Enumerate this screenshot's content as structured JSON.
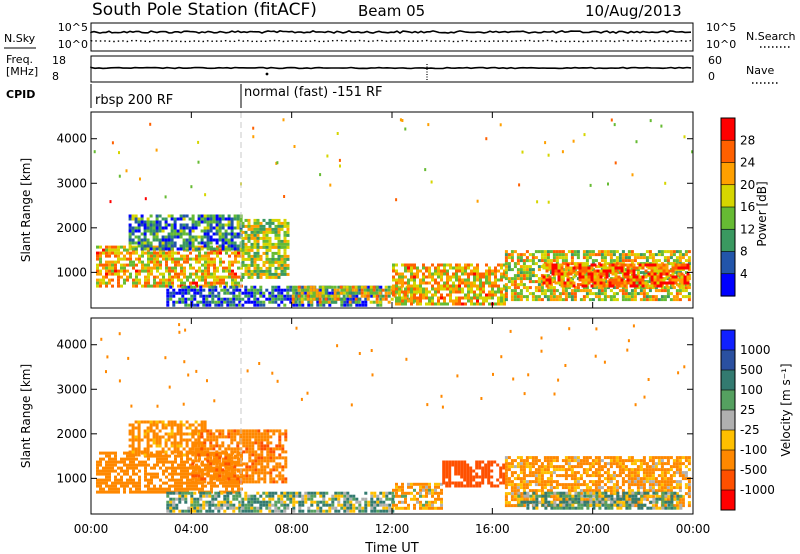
{
  "header": {
    "station": "South Pole Station (fitACF)",
    "beam": "Beam 05",
    "date": "10/Aug/2013"
  },
  "panels": {
    "nsky": {
      "left_label": "N.Sky",
      "right_label": "N.Search",
      "left_ticks": [
        "10^5",
        "10^0"
      ],
      "right_ticks": [
        "10^5",
        "10^0"
      ]
    },
    "freq": {
      "left_label_line1": "Freq.",
      "left_label_line2": "[MHz]",
      "right_label": "Nave",
      "left_ticks": [
        "18",
        "8"
      ],
      "right_ticks": [
        "60",
        "0"
      ]
    },
    "cpid": {
      "label": "CPID",
      "modes": [
        {
          "text": "rbsp 200 RF",
          "start_hour": 0
        },
        {
          "text": "normal (fast) -151 RF",
          "start_hour": 6
        }
      ]
    }
  },
  "colorbars": {
    "power": {
      "label": "Power [dB]",
      "ticks": [
        "28",
        "24",
        "20",
        "16",
        "12",
        "8",
        "4"
      ],
      "colors": [
        "#ff0000",
        "#ff6000",
        "#ffa000",
        "#d6d600",
        "#66bb33",
        "#3a9960",
        "#2255aa",
        "#0000ff"
      ]
    },
    "velocity": {
      "label": "Velocity [m s⁻¹]",
      "ticks": [
        "1000",
        "500",
        "100",
        "25",
        "-25",
        "-100",
        "-500",
        "-1000"
      ],
      "colors": [
        "#1020ff",
        "#2a50a0",
        "#337a70",
        "#55a060",
        "#b0b0b0",
        "#ffc000",
        "#ff8800",
        "#ff5000",
        "#ff0000"
      ]
    }
  },
  "chart_data": [
    {
      "type": "heatmap",
      "title": "",
      "xlabel": "",
      "ylabel": "Slant Range [km]",
      "variable": "Power [dB]",
      "xlim": [
        0,
        24
      ],
      "ylim": [
        200,
        4600
      ],
      "xticks": [
        0,
        4,
        8,
        12,
        16,
        20,
        24
      ],
      "yticks": [
        1000,
        2000,
        3000,
        4000
      ],
      "ytick_labels": [
        "1000",
        "2000",
        "3000",
        "4000"
      ],
      "regions": [
        {
          "t0": 0.2,
          "t1": 6.0,
          "r0": 700,
          "r1": 1600,
          "value": 22
        },
        {
          "t0": 1.5,
          "t1": 6.0,
          "r0": 1500,
          "r1": 2300,
          "value": 12
        },
        {
          "t0": 6.0,
          "t1": 7.8,
          "r0": 900,
          "r1": 2200,
          "value": 18
        },
        {
          "t0": 3.0,
          "t1": 11.5,
          "r0": 250,
          "r1": 700,
          "value": 10
        },
        {
          "t0": 8.0,
          "t1": 13.0,
          "r0": 300,
          "r1": 700,
          "value": 20
        },
        {
          "t0": 12.0,
          "t1": 16.5,
          "r0": 300,
          "r1": 1200,
          "value": 22
        },
        {
          "t0": 16.5,
          "t1": 23.8,
          "r0": 400,
          "r1": 1500,
          "value": 20
        },
        {
          "t0": 18.0,
          "t1": 23.8,
          "r0": 700,
          "r1": 1200,
          "value": 26
        }
      ]
    },
    {
      "type": "heatmap",
      "title": "",
      "xlabel": "Time UT",
      "ylabel": "Slant Range [km]",
      "variable": "Velocity [m s⁻¹]",
      "xlim": [
        0,
        24
      ],
      "ylim": [
        200,
        4600
      ],
      "xticks": [
        0,
        4,
        8,
        12,
        16,
        20,
        24
      ],
      "xtick_labels": [
        "00:00",
        "04:00",
        "08:00",
        "12:00",
        "16:00",
        "20:00",
        "00:00"
      ],
      "yticks": [
        1000,
        2000,
        3000,
        4000
      ],
      "ytick_labels": [
        "1000",
        "2000",
        "3000",
        "4000"
      ],
      "regions": [
        {
          "t0": 0.2,
          "t1": 6.0,
          "r0": 700,
          "r1": 1600,
          "value": -300
        },
        {
          "t0": 1.5,
          "t1": 4.5,
          "r0": 1500,
          "r1": 2300,
          "value": -200
        },
        {
          "t0": 4.0,
          "t1": 7.8,
          "r0": 900,
          "r1": 2100,
          "value": -400
        },
        {
          "t0": 3.0,
          "t1": 12.0,
          "r0": 250,
          "r1": 700,
          "value": 60
        },
        {
          "t0": 12.0,
          "t1": 14.0,
          "r0": 300,
          "r1": 900,
          "value": -100
        },
        {
          "t0": 14.0,
          "t1": 16.5,
          "r0": 800,
          "r1": 1400,
          "value": -800
        },
        {
          "t0": 16.5,
          "t1": 23.8,
          "r0": 400,
          "r1": 1500,
          "value": -150
        },
        {
          "t0": 17.0,
          "t1": 23.5,
          "r0": 300,
          "r1": 700,
          "value": 80
        }
      ]
    }
  ]
}
